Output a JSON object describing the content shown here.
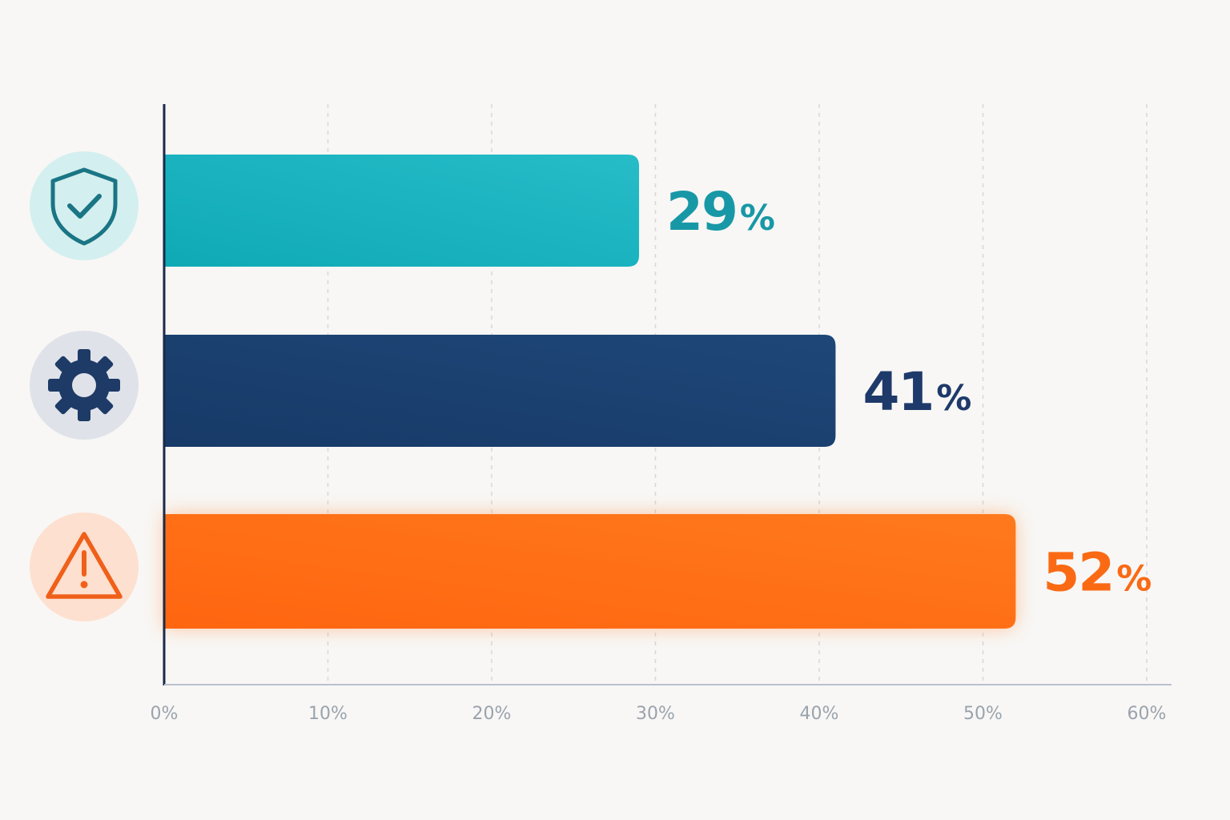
{
  "chart_data": {
    "type": "bar",
    "orientation": "horizontal",
    "categories": [
      "shield-check-icon",
      "gear-icon",
      "warning-icon"
    ],
    "values": [
      29,
      41,
      52
    ],
    "value_suffix": "%",
    "xlim": [
      0,
      60
    ],
    "x_ticks": [
      0,
      10,
      20,
      30,
      40,
      50,
      60
    ],
    "tick_labels": [
      "0%",
      "10%",
      "20%",
      "30%",
      "40%",
      "50%",
      "60%"
    ],
    "grid": "vertical-dashed",
    "bar_colors": [
      "#1bb3c0",
      "#1e4577",
      "#ff6e14"
    ],
    "label_colors": [
      "#1898a6",
      "#1e3a6a",
      "#fa6a14"
    ],
    "icon_colors": [
      "#1a7585",
      "#1e3a66",
      "#f0601a"
    ],
    "icon_bg_colors": [
      "#d4efef",
      "#dfe2e8",
      "#fde0cf"
    ]
  }
}
